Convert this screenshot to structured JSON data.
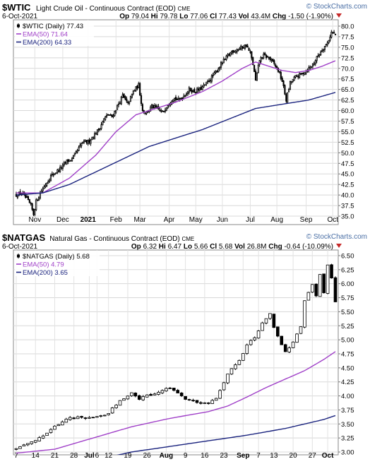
{
  "chart_data": [
    {
      "type": "candlestick",
      "symbol": "$WTIC",
      "title": "Light Crude Oil - Continuous Contract (EOD)",
      "exchange": "CME",
      "date": "6-Oct-2021",
      "watermark": "© StockCharts.com",
      "quote": {
        "open": "Op 79.04",
        "high": "Hi 79.78",
        "low": "Lo 77.06",
        "close": "Cl 77.43",
        "volume": "Vol 43.4M",
        "change": "Chg -1.50 (-1.90%)"
      },
      "legend": [
        {
          "label": "$WTIC (Daily) 77.43",
          "color": "#000000",
          "kind": "candle"
        },
        {
          "label": "EMA(50) 71.64",
          "color": "#a040c8",
          "kind": "line"
        },
        {
          "label": "EMA(200) 64.33",
          "color": "#1a237e",
          "kind": "line"
        }
      ],
      "ylim": [
        33,
        81.5
      ],
      "yticks": [
        35.0,
        37.5,
        40.0,
        42.5,
        45.0,
        47.5,
        50.0,
        52.5,
        55.0,
        57.5,
        60.0,
        62.5,
        65.0,
        67.5,
        70.0,
        72.5,
        75.0,
        77.5,
        80.0
      ],
      "ytick_labels": [
        "35.0",
        "37.5",
        "40.0",
        "42.5",
        "45.0",
        "47.5",
        "50.0",
        "52.5",
        "55.0",
        "57.5",
        "60.0",
        "62.5",
        "65.0",
        "67.5",
        "70.0",
        "72.5",
        "75.0",
        "77.5",
        "80.0"
      ],
      "x_range": [
        0,
        240
      ],
      "xticks": [
        {
          "label": "Nov",
          "x": 14,
          "bold": false
        },
        {
          "label": "Dec",
          "x": 35,
          "bold": false
        },
        {
          "label": "2021",
          "x": 54,
          "bold": true
        },
        {
          "label": "Feb",
          "x": 75,
          "bold": false
        },
        {
          "label": "Mar",
          "x": 93,
          "bold": false
        },
        {
          "label": "Apr",
          "x": 115,
          "bold": false
        },
        {
          "label": "May",
          "x": 135,
          "bold": false
        },
        {
          "label": "Jun",
          "x": 155,
          "bold": false
        },
        {
          "label": "Jul",
          "x": 176,
          "bold": false
        },
        {
          "label": "Aug",
          "x": 196,
          "bold": false
        },
        {
          "label": "Sep",
          "x": 218,
          "bold": false
        },
        {
          "label": "Oct",
          "x": 238,
          "bold": false
        }
      ],
      "close_path": [
        [
          0,
          40.0
        ],
        [
          4,
          40.5
        ],
        [
          8,
          39.0
        ],
        [
          11,
          37.5
        ],
        [
          13,
          35.5
        ],
        [
          15,
          38.5
        ],
        [
          18,
          40.5
        ],
        [
          22,
          42.5
        ],
        [
          26,
          44.5
        ],
        [
          30,
          45.5
        ],
        [
          34,
          46.5
        ],
        [
          38,
          48.0
        ],
        [
          42,
          48.5
        ],
        [
          46,
          50.5
        ],
        [
          50,
          52.5
        ],
        [
          54,
          52.5
        ],
        [
          58,
          54.0
        ],
        [
          62,
          55.5
        ],
        [
          66,
          58.0
        ],
        [
          69,
          59.0
        ],
        [
          72,
          58.5
        ],
        [
          76,
          61.0
        ],
        [
          80,
          63.5
        ],
        [
          84,
          61.5
        ],
        [
          88,
          64.5
        ],
        [
          92,
          66.0
        ],
        [
          95,
          60.0
        ],
        [
          98,
          59.5
        ],
        [
          102,
          61.0
        ],
        [
          106,
          60.5
        ],
        [
          110,
          59.5
        ],
        [
          114,
          61.5
        ],
        [
          118,
          63.0
        ],
        [
          122,
          62.5
        ],
        [
          126,
          63.5
        ],
        [
          130,
          65.0
        ],
        [
          134,
          64.5
        ],
        [
          138,
          65.0
        ],
        [
          142,
          66.0
        ],
        [
          146,
          67.5
        ],
        [
          150,
          69.0
        ],
        [
          154,
          71.0
        ],
        [
          158,
          72.5
        ],
        [
          162,
          74.0
        ],
        [
          166,
          74.5
        ],
        [
          170,
          75.0
        ],
        [
          173,
          75.5
        ],
        [
          176,
          73.5
        ],
        [
          178,
          71.0
        ],
        [
          180,
          67.0
        ],
        [
          183,
          72.0
        ],
        [
          186,
          73.0
        ],
        [
          190,
          72.5
        ],
        [
          194,
          71.0
        ],
        [
          197,
          69.5
        ],
        [
          200,
          67.0
        ],
        [
          203,
          62.5
        ],
        [
          206,
          66.5
        ],
        [
          210,
          68.0
        ],
        [
          214,
          68.5
        ],
        [
          218,
          69.5
        ],
        [
          222,
          70.5
        ],
        [
          226,
          72.5
        ],
        [
          230,
          74.5
        ],
        [
          234,
          76.0
        ],
        [
          237,
          78.5
        ],
        [
          240,
          78.0
        ]
      ],
      "volatility": 0.9,
      "ema50": [
        [
          0,
          40.5
        ],
        [
          20,
          40.5
        ],
        [
          40,
          44.0
        ],
        [
          60,
          49.5
        ],
        [
          75,
          55.0
        ],
        [
          90,
          59.0
        ],
        [
          105,
          60.5
        ],
        [
          120,
          62.0
        ],
        [
          140,
          64.5
        ],
        [
          155,
          67.0
        ],
        [
          170,
          70.0
        ],
        [
          180,
          71.5
        ],
        [
          190,
          70.5
        ],
        [
          200,
          69.5
        ],
        [
          210,
          69.0
        ],
        [
          220,
          69.5
        ],
        [
          230,
          70.5
        ],
        [
          240,
          71.8
        ]
      ],
      "ema200": [
        [
          0,
          40.0
        ],
        [
          20,
          40.5
        ],
        [
          40,
          42.5
        ],
        [
          60,
          45.5
        ],
        [
          80,
          48.5
        ],
        [
          100,
          51.5
        ],
        [
          120,
          53.5
        ],
        [
          140,
          55.5
        ],
        [
          160,
          58.0
        ],
        [
          180,
          60.5
        ],
        [
          200,
          61.5
        ],
        [
          220,
          62.5
        ],
        [
          240,
          64.3
        ]
      ]
    },
    {
      "type": "candlestick",
      "symbol": "$NATGAS",
      "title": "Natural Gas - Continuous Contract (EOD)",
      "exchange": "CME",
      "date": "6-Oct-2021",
      "watermark": "© StockCharts.com",
      "quote": {
        "open": "Op 6.32",
        "high": "Hi 6.47",
        "low": "Lo 5.66",
        "close": "Cl 5.68",
        "volume": "Vol 26.8M",
        "change": "Chg -0.64 (-10.09%)"
      },
      "legend": [
        {
          "label": "$NATGAS (Daily) 5.68",
          "color": "#000000",
          "kind": "candle"
        },
        {
          "label": "EMA(50) 4.79",
          "color": "#a040c8",
          "kind": "line"
        },
        {
          "label": "EMA(200) 3.65",
          "color": "#1a237e",
          "kind": "line"
        }
      ],
      "ylim": [
        2.95,
        6.6
      ],
      "yticks": [
        3.0,
        3.25,
        3.5,
        3.75,
        4.0,
        4.25,
        4.5,
        4.75,
        5.0,
        5.25,
        5.5,
        5.75,
        6.0,
        6.25,
        6.5
      ],
      "ytick_labels": [
        "3.00",
        "3.25",
        "3.50",
        "3.75",
        "4.00",
        "4.25",
        "4.50",
        "4.75",
        "5.00",
        "5.25",
        "5.50",
        "5.75",
        "6.00",
        "6.25",
        "6.50"
      ],
      "x_range": [
        0,
        83
      ],
      "xticks": [
        {
          "label": "7",
          "x": 0,
          "bold": false
        },
        {
          "label": "14",
          "x": 5,
          "bold": false
        },
        {
          "label": "21",
          "x": 10,
          "bold": false
        },
        {
          "label": "28",
          "x": 15,
          "bold": false
        },
        {
          "label": "Jul",
          "x": 19,
          "bold": true
        },
        {
          "label": "6",
          "x": 21,
          "bold": false
        },
        {
          "label": "12",
          "x": 24,
          "bold": false
        },
        {
          "label": "19",
          "x": 29,
          "bold": false
        },
        {
          "label": "26",
          "x": 34,
          "bold": false
        },
        {
          "label": "Aug",
          "x": 39,
          "bold": true
        },
        {
          "label": "9",
          "x": 44,
          "bold": false
        },
        {
          "label": "16",
          "x": 49,
          "bold": false
        },
        {
          "label": "23",
          "x": 54,
          "bold": false
        },
        {
          "label": "Sep",
          "x": 59,
          "bold": true
        },
        {
          "label": "7",
          "x": 63,
          "bold": false
        },
        {
          "label": "13",
          "x": 67,
          "bold": false
        },
        {
          "label": "20",
          "x": 72,
          "bold": false
        },
        {
          "label": "27",
          "x": 77,
          "bold": false
        },
        {
          "label": "Oct",
          "x": 81,
          "bold": true
        }
      ],
      "close_path": [
        [
          0,
          3.05
        ],
        [
          2,
          3.12
        ],
        [
          4,
          3.2
        ],
        [
          6,
          3.25
        ],
        [
          8,
          3.35
        ],
        [
          10,
          3.45
        ],
        [
          12,
          3.55
        ],
        [
          14,
          3.6
        ],
        [
          16,
          3.62
        ],
        [
          18,
          3.58
        ],
        [
          20,
          3.62
        ],
        [
          22,
          3.65
        ],
        [
          24,
          3.7
        ],
        [
          26,
          3.85
        ],
        [
          28,
          3.95
        ],
        [
          30,
          4.05
        ],
        [
          32,
          3.95
        ],
        [
          34,
          4.0
        ],
        [
          36,
          4.05
        ],
        [
          38,
          4.1
        ],
        [
          40,
          4.15
        ],
        [
          42,
          4.05
        ],
        [
          44,
          3.95
        ],
        [
          46,
          3.9
        ],
        [
          48,
          3.85
        ],
        [
          50,
          3.88
        ],
        [
          52,
          3.95
        ],
        [
          54,
          4.25
        ],
        [
          56,
          4.5
        ],
        [
          58,
          4.65
        ],
        [
          60,
          4.9
        ],
        [
          62,
          5.05
        ],
        [
          64,
          5.3
        ],
        [
          66,
          5.45
        ],
        [
          67,
          5.2
        ],
        [
          68,
          5.05
        ],
        [
          70,
          4.8
        ],
        [
          72,
          4.95
        ],
        [
          74,
          5.25
        ],
        [
          75,
          5.7
        ],
        [
          76,
          5.85
        ],
        [
          77,
          6.0
        ],
        [
          78,
          5.8
        ],
        [
          79,
          6.15
        ],
        [
          80,
          5.85
        ],
        [
          81,
          6.35
        ],
        [
          82,
          6.1
        ],
        [
          83,
          5.68
        ]
      ],
      "volatility": 0.04,
      "ema50": [
        [
          0,
          2.98
        ],
        [
          10,
          3.05
        ],
        [
          20,
          3.25
        ],
        [
          30,
          3.45
        ],
        [
          40,
          3.6
        ],
        [
          50,
          3.72
        ],
        [
          55,
          3.82
        ],
        [
          60,
          3.98
        ],
        [
          65,
          4.15
        ],
        [
          70,
          4.3
        ],
        [
          75,
          4.45
        ],
        [
          80,
          4.65
        ],
        [
          83,
          4.79
        ]
      ],
      "ema200": [
        [
          0,
          2.6
        ],
        [
          20,
          2.85
        ],
        [
          30,
          3.0
        ],
        [
          40,
          3.1
        ],
        [
          50,
          3.2
        ],
        [
          60,
          3.3
        ],
        [
          70,
          3.42
        ],
        [
          80,
          3.58
        ],
        [
          83,
          3.65
        ]
      ]
    }
  ]
}
